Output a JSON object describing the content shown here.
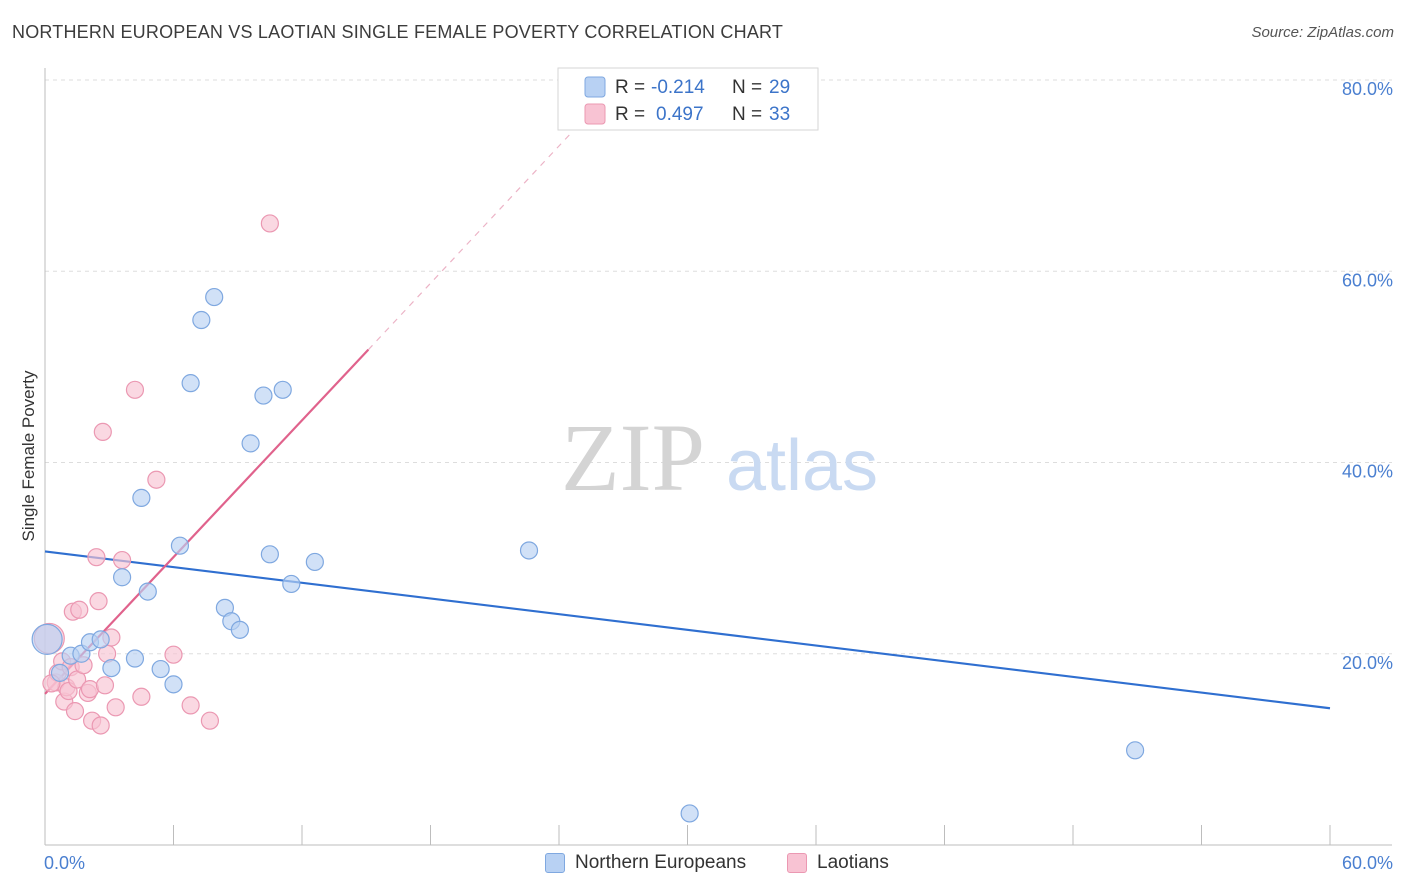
{
  "title": "NORTHERN EUROPEAN VS LAOTIAN SINGLE FEMALE POVERTY CORRELATION CHART",
  "source": "Source: ZipAtlas.com",
  "watermark": {
    "zip": "ZIP",
    "atlas": "atlas"
  },
  "legend_top": [
    {
      "r_label": "R =",
      "r_value": "-0.214",
      "n_label": "N =",
      "n_value": "29"
    },
    {
      "r_label": "R =",
      "r_value": "0.497",
      "n_label": "N =",
      "n_value": "33"
    }
  ],
  "legend_bottom": [
    "Northern Europeans",
    "Laotians"
  ],
  "colors": {
    "blue_fill": "#b8d1f3",
    "blue_stroke": "#7fa8e0",
    "blue_line": "#2f6fd0",
    "pink_fill": "#f8c3d3",
    "pink_stroke": "#eb98b2",
    "pink_line": "#e0628c",
    "tick_text": "#4a7fd0",
    "grid": "#dddddd"
  },
  "chart_data": {
    "type": "scatter",
    "title": "NORTHERN EUROPEAN VS LAOTIAN SINGLE FEMALE POVERTY CORRELATION CHART",
    "xlabel": "",
    "ylabel": "Single Female Poverty",
    "xlim": [
      0,
      60
    ],
    "ylim": [
      0,
      80
    ],
    "x_tick_labels": [
      "0.0%",
      "60.0%"
    ],
    "y_ticks": [
      20,
      40,
      60,
      80
    ],
    "y_tick_labels": [
      "20.0%",
      "40.0%",
      "60.0%",
      "80.0%"
    ],
    "grid": "horizontal dashed",
    "series": [
      {
        "name": "Northern Europeans",
        "r": -0.214,
        "n": 29,
        "points": [
          [
            0.1,
            21.5,
            "large"
          ],
          [
            0.7,
            18.0
          ],
          [
            1.2,
            19.8
          ],
          [
            1.7,
            20.0
          ],
          [
            2.1,
            21.2
          ],
          [
            2.6,
            21.5
          ],
          [
            3.1,
            18.5
          ],
          [
            3.6,
            28.0
          ],
          [
            4.2,
            19.5
          ],
          [
            4.5,
            36.3
          ],
          [
            4.8,
            26.5
          ],
          [
            5.4,
            18.4
          ],
          [
            6.0,
            16.8
          ],
          [
            6.3,
            31.3
          ],
          [
            6.8,
            48.3
          ],
          [
            7.3,
            54.9
          ],
          [
            7.9,
            57.3
          ],
          [
            8.4,
            24.8
          ],
          [
            8.7,
            23.4
          ],
          [
            9.1,
            22.5
          ],
          [
            9.6,
            42.0
          ],
          [
            10.2,
            47.0
          ],
          [
            10.5,
            30.4
          ],
          [
            11.1,
            47.6
          ],
          [
            11.5,
            27.3
          ],
          [
            12.6,
            29.6
          ],
          [
            22.6,
            30.8
          ],
          [
            30.1,
            3.3
          ],
          [
            50.9,
            9.9
          ]
        ],
        "trend": {
          "x": [
            0,
            60
          ],
          "y": [
            30.7,
            14.3
          ]
        }
      },
      {
        "name": "Laotians",
        "r": 0.497,
        "n": 33,
        "points": [
          [
            0.2,
            21.6,
            "large"
          ],
          [
            0.5,
            17.0
          ],
          [
            0.6,
            18.0
          ],
          [
            0.8,
            19.2
          ],
          [
            0.9,
            15.0
          ],
          [
            1.0,
            16.5
          ],
          [
            1.1,
            16.1
          ],
          [
            1.2,
            18.6
          ],
          [
            1.3,
            24.4
          ],
          [
            1.4,
            14.0
          ],
          [
            1.5,
            17.3
          ],
          [
            1.6,
            24.6
          ],
          [
            1.8,
            18.8
          ],
          [
            2.0,
            15.9
          ],
          [
            2.1,
            16.3
          ],
          [
            2.2,
            13.0
          ],
          [
            2.4,
            30.1
          ],
          [
            2.5,
            25.5
          ],
          [
            2.6,
            12.5
          ],
          [
            2.7,
            43.2
          ],
          [
            2.8,
            16.7
          ],
          [
            2.9,
            20.0
          ],
          [
            3.1,
            21.7
          ],
          [
            3.3,
            14.4
          ],
          [
            3.6,
            29.8
          ],
          [
            4.2,
            47.6
          ],
          [
            4.5,
            15.5
          ],
          [
            5.2,
            38.2
          ],
          [
            6.0,
            19.9
          ],
          [
            6.8,
            14.6
          ],
          [
            7.7,
            13.0
          ],
          [
            10.5,
            65.0
          ],
          [
            0.3,
            16.9
          ]
        ],
        "trend": {
          "x": [
            0,
            15.1
          ],
          "y": [
            15.8,
            51.8
          ]
        },
        "trend_extension": {
          "x": [
            15.1,
            24.5
          ],
          "y": [
            51.8,
            74.3
          ]
        }
      }
    ]
  }
}
